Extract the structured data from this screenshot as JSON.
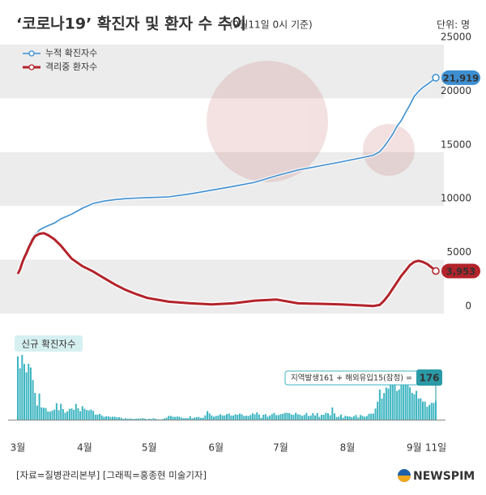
{
  "chart_data": [
    {
      "type": "line",
      "title": "‘코로나19’ 확진자 및 환자 수 추이",
      "subtitle": "(9월11일 0시 기준)",
      "y_label": "단위: 명",
      "x": [
        0,
        1,
        2,
        3,
        4,
        5,
        6,
        7,
        8,
        9,
        10,
        12,
        14,
        17,
        20,
        25,
        30,
        35,
        40,
        45,
        50,
        55,
        60,
        70,
        80,
        90,
        100,
        110,
        120,
        130,
        140,
        150,
        160,
        165,
        168,
        170,
        172,
        174,
        176,
        178,
        180,
        182,
        184,
        186,
        188,
        190,
        192,
        194
      ],
      "xlim": [
        0,
        194
      ],
      "ylim": [
        0,
        25000
      ],
      "yticks": [
        0,
        5000,
        10000,
        15000,
        20000,
        25000
      ],
      "grid": "bands",
      "series": [
        {
          "name": "누적 확진자수",
          "color": "#3d8fd1",
          "values": [
            3736,
            4212,
            4812,
            5328,
            5766,
            6284,
            6767,
            7134,
            7382,
            7513,
            7755,
            7979,
            8162,
            8413,
            8799,
            9241,
            9786,
            10237,
            10450,
            10591,
            10674,
            10728,
            10774,
            10840,
            11122,
            11468,
            11814,
            12198,
            12800,
            13338,
            13711,
            14092,
            14499,
            14714,
            15039,
            15515,
            16058,
            16670,
            17399,
            17945,
            18706,
            19400,
            20182,
            20644,
            21010,
            21296,
            21588,
            21919
          ],
          "value_labels": [
            null,
            null,
            null,
            null,
            null,
            null,
            null,
            null,
            null,
            null,
            null,
            null,
            null,
            null,
            null,
            null,
            null,
            null,
            null,
            null,
            null,
            null,
            null,
            null,
            null,
            null,
            null,
            null,
            null,
            null,
            null,
            null,
            null,
            null,
            null,
            null,
            null,
            null,
            null,
            null,
            null,
            null,
            null,
            null,
            null,
            null,
            null,
            "21,919"
          ]
        },
        {
          "name": "격리중 환자수",
          "color": "#b3232b",
          "values": [
            3700,
            4100,
            4700,
            5200,
            5600,
            6100,
            6500,
            6900,
            7200,
            7300,
            7400,
            7470,
            7300,
            6900,
            6300,
            5100,
            4400,
            3900,
            3300,
            2700,
            2200,
            1800,
            1450,
            1100,
            950,
            850,
            950,
            1200,
            1300,
            950,
            900,
            850,
            750,
            700,
            800,
            1200,
            1700,
            2300,
            2900,
            3500,
            4000,
            4500,
            4800,
            4900,
            4800,
            4600,
            4300,
            3953
          ],
          "value_labels": [
            null,
            null,
            null,
            null,
            null,
            null,
            null,
            null,
            null,
            null,
            null,
            null,
            null,
            null,
            null,
            null,
            null,
            null,
            null,
            null,
            null,
            null,
            null,
            null,
            null,
            null,
            null,
            null,
            null,
            null,
            null,
            null,
            null,
            null,
            null,
            null,
            null,
            null,
            null,
            null,
            null,
            null,
            null,
            null,
            null,
            null,
            null,
            "3,953"
          ]
        }
      ]
    },
    {
      "type": "bar",
      "title": "신규 확진자수",
      "color": "#3db5c1",
      "annotation": "지역발생161 + 해외유입15(잠정) =",
      "categories": [
        "3월",
        null,
        null,
        null,
        null,
        null,
        null,
        null,
        null,
        null,
        null,
        null,
        null,
        null,
        null,
        null,
        null,
        null,
        null,
        null,
        null,
        null,
        null,
        null,
        null,
        null,
        null,
        null,
        null,
        null,
        null,
        "4월",
        null,
        null,
        null,
        null,
        null,
        null,
        null,
        null,
        null,
        null,
        null,
        null,
        null,
        null,
        null,
        null,
        null,
        null,
        null,
        null,
        null,
        null,
        null,
        null,
        null,
        null,
        null,
        null,
        null,
        "5월",
        null,
        null,
        null,
        null,
        null,
        null,
        null,
        null,
        null,
        null,
        null,
        null,
        null,
        null,
        null,
        null,
        null,
        null,
        null,
        null,
        null,
        null,
        null,
        null,
        null,
        null,
        null,
        null,
        null,
        null,
        "6월",
        null,
        null,
        null,
        null,
        null,
        null,
        null,
        null,
        null,
        null,
        null,
        null,
        null,
        null,
        null,
        null,
        null,
        null,
        null,
        null,
        null,
        null,
        null,
        null,
        null,
        null,
        null,
        null,
        null,
        "7월",
        null,
        null,
        null,
        null,
        null,
        null,
        null,
        null,
        null,
        null,
        null,
        null,
        null,
        null,
        null,
        null,
        null,
        null,
        null,
        null,
        null,
        null,
        null,
        null,
        null,
        null,
        null,
        null,
        null,
        null,
        "8월",
        null,
        null,
        null,
        null,
        null,
        null,
        null,
        null,
        null,
        null,
        null,
        null,
        null,
        null,
        null,
        null,
        null,
        null,
        null,
        null,
        null,
        null,
        null,
        null,
        null,
        null,
        null,
        null,
        null,
        null,
        "9월",
        null,
        null,
        null,
        null,
        null,
        null,
        null,
        null,
        null,
        "11일"
      ],
      "values": [
        586,
        476,
        600,
        516,
        438,
        518,
        483,
        367,
        248,
        131,
        242,
        114,
        110,
        107,
        76,
        74,
        84,
        93,
        152,
        87,
        147,
        98,
        64,
        76,
        100,
        104,
        91,
        146,
        105,
        78,
        125,
        101,
        89,
        86,
        94,
        81,
        47,
        47,
        53,
        39,
        27,
        30,
        32,
        25,
        27,
        27,
        22,
        22,
        18,
        8,
        13,
        9,
        11,
        8,
        6,
        10,
        10,
        10,
        14,
        9,
        4,
        9,
        6,
        13,
        8,
        3,
        2,
        4,
        12,
        18,
        34,
        35,
        27,
        26,
        29,
        27,
        19,
        13,
        15,
        13,
        32,
        12,
        20,
        23,
        25,
        16,
        19,
        40,
        79,
        58,
        39,
        27,
        35,
        38,
        49,
        39,
        39,
        51,
        57,
        38,
        38,
        50,
        45,
        56,
        49,
        34,
        37,
        34,
        43,
        59,
        49,
        67,
        48,
        17,
        46,
        51,
        28,
        39,
        51,
        62,
        42,
        43,
        51,
        54,
        63,
        63,
        61,
        48,
        44,
        63,
        50,
        45,
        35,
        44,
        62,
        33,
        39,
        60,
        39,
        61,
        26,
        45,
        45,
        63,
        59,
        41,
        113,
        58,
        25,
        28,
        48,
        18,
        36,
        31,
        30,
        23,
        33,
        43,
        20,
        43,
        36,
        28,
        34,
        54,
        56,
        56,
        103,
        166,
        279,
        197,
        246,
        297,
        288,
        324,
        332,
        397,
        266,
        280,
        320,
        441,
        371,
        323,
        299,
        248,
        235,
        267,
        195,
        198,
        168,
        167,
        119,
        136,
        156,
        155,
        176
      ]
    }
  ],
  "source": "[자료=질병관리본부] [그래픽=홍종현 미술기자]",
  "logo": "NEWSPIM"
}
